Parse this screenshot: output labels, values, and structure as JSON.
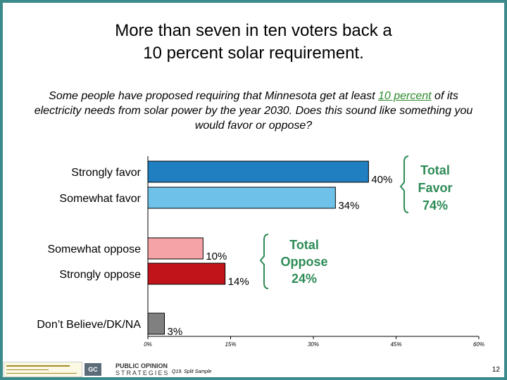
{
  "title_line1": "More than seven in ten voters back a",
  "title_line2": "10 percent solar requirement.",
  "question": {
    "part1": "Some people have proposed requiring that Minnesota get at least ",
    "highlight": "10 percent",
    "part2": " of its electricity needs from solar power by the year 2030.   Does this sound like something you would favor or oppose?"
  },
  "chart_data": {
    "type": "bar",
    "orientation": "horizontal",
    "categories": [
      "Strongly favor",
      "Somewhat favor",
      "Somewhat oppose",
      "Strongly oppose",
      "Don’t Believe/DK/NA"
    ],
    "values": [
      40,
      34,
      10,
      14,
      3
    ],
    "value_labels": [
      "40%",
      "34%",
      "10%",
      "14%",
      "3%"
    ],
    "colors": [
      "#1f7fc1",
      "#6ec2ea",
      "#f5a3a6",
      "#c0141a",
      "#808080"
    ],
    "xlim": [
      0,
      60
    ],
    "x_ticks": [
      0,
      15,
      30,
      45,
      60
    ],
    "x_tick_labels": [
      "0%",
      "15%",
      "30%",
      "45%",
      "60%"
    ],
    "groups": [
      {
        "label_lines": [
          "Total",
          "Favor",
          "74%"
        ],
        "categories": [
          "Strongly favor",
          "Somewhat favor"
        ]
      },
      {
        "label_lines": [
          "Total",
          "Oppose",
          "24%"
        ],
        "categories": [
          "Somewhat oppose",
          "Strongly oppose"
        ]
      }
    ],
    "group_color": "#2e8b57"
  },
  "footer": {
    "note": "Q19. Split Sample",
    "page_number": "12",
    "logo_text_1": "PUBLIC OPINION",
    "logo_text_2": "STRATEGIES",
    "logo_mark": "GC"
  }
}
